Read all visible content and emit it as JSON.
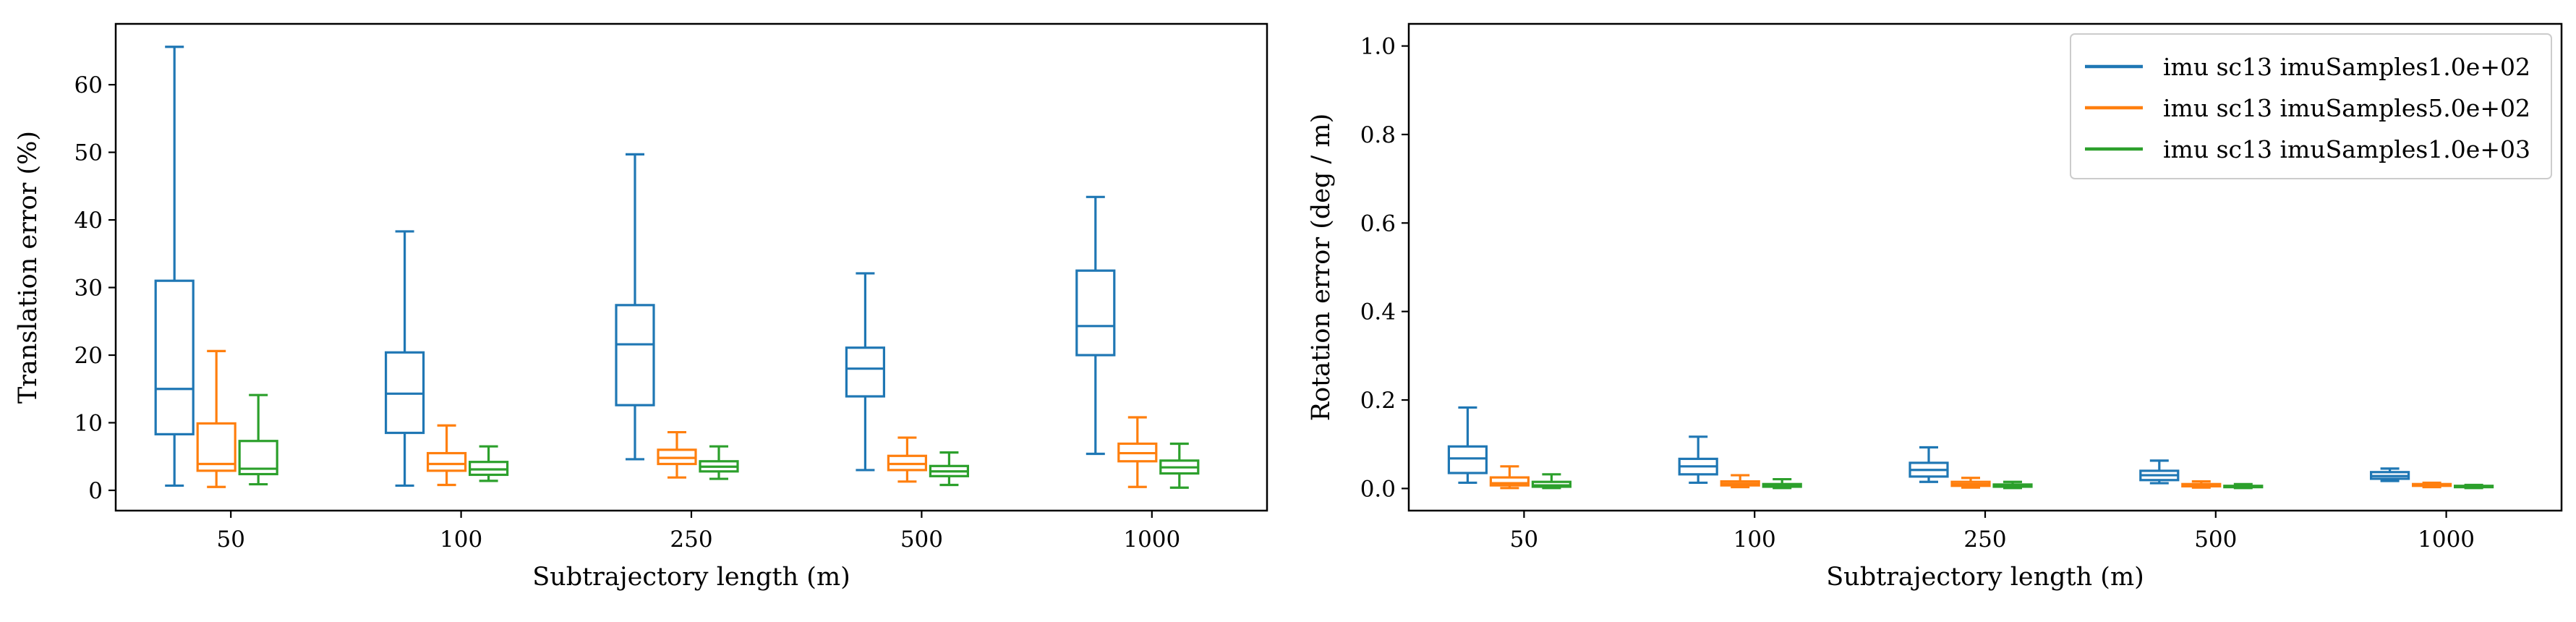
{
  "chart_data": [
    {
      "type": "box",
      "categories": [
        "50",
        "100",
        "250",
        "500",
        "1000"
      ],
      "xlabel": "Subtrajectory length (m)",
      "ylabel": "Translation error (%)",
      "ylim": [
        -3,
        69
      ],
      "yticks": [
        "0",
        "10",
        "20",
        "30",
        "40",
        "50",
        "60"
      ],
      "legend": false,
      "series": [
        {
          "name": "imu sc13 imuSamples1.0e+02",
          "color": "#1f77b4",
          "boxes": [
            {
              "whislo": 0.7,
              "q1": 8.3,
              "med": 15.0,
              "q3": 31.0,
              "whishi": 65.6
            },
            {
              "whislo": 0.7,
              "q1": 8.5,
              "med": 14.3,
              "q3": 20.4,
              "whishi": 38.3
            },
            {
              "whislo": 4.6,
              "q1": 12.6,
              "med": 21.6,
              "q3": 27.4,
              "whishi": 49.7
            },
            {
              "whislo": 3.0,
              "q1": 13.9,
              "med": 18.0,
              "q3": 21.1,
              "whishi": 32.1
            },
            {
              "whislo": 5.4,
              "q1": 20.0,
              "med": 24.3,
              "q3": 32.5,
              "whishi": 43.4
            }
          ]
        },
        {
          "name": "imu sc13 imuSamples5.0e+02",
          "color": "#ff7f0e",
          "boxes": [
            {
              "whislo": 0.5,
              "q1": 2.9,
              "med": 3.9,
              "q3": 9.9,
              "whishi": 20.6
            },
            {
              "whislo": 0.8,
              "q1": 2.9,
              "med": 3.9,
              "q3": 5.5,
              "whishi": 9.6
            },
            {
              "whislo": 1.9,
              "q1": 3.9,
              "med": 4.8,
              "q3": 6.0,
              "whishi": 8.6
            },
            {
              "whislo": 1.3,
              "q1": 3.0,
              "med": 3.9,
              "q3": 5.1,
              "whishi": 7.8
            },
            {
              "whislo": 0.5,
              "q1": 4.3,
              "med": 5.5,
              "q3": 6.9,
              "whishi": 10.8
            }
          ]
        },
        {
          "name": "imu sc13 imuSamples1.0e+03",
          "color": "#2ca02c",
          "boxes": [
            {
              "whislo": 0.9,
              "q1": 2.4,
              "med": 3.2,
              "q3": 7.3,
              "whishi": 14.1
            },
            {
              "whislo": 1.4,
              "q1": 2.3,
              "med": 3.1,
              "q3": 4.2,
              "whishi": 6.5
            },
            {
              "whislo": 1.7,
              "q1": 2.8,
              "med": 3.5,
              "q3": 4.3,
              "whishi": 6.5
            },
            {
              "whislo": 0.8,
              "q1": 2.1,
              "med": 2.8,
              "q3": 3.6,
              "whishi": 5.6
            },
            {
              "whislo": 0.4,
              "q1": 2.5,
              "med": 3.4,
              "q3": 4.4,
              "whishi": 6.9
            }
          ]
        }
      ]
    },
    {
      "type": "box",
      "categories": [
        "50",
        "100",
        "250",
        "500",
        "1000"
      ],
      "xlabel": "Subtrajectory length (m)",
      "ylabel": "Rotation error (deg / m)",
      "ylim": [
        -0.05,
        1.05
      ],
      "yticks": [
        "0.0",
        "0.2",
        "0.4",
        "0.6",
        "0.8",
        "1.0"
      ],
      "legend": true,
      "legend_loc": "upper right",
      "series": [
        {
          "name": "imu sc13 imuSamples1.0e+02",
          "color": "#1f77b4",
          "boxes": [
            {
              "whislo": 0.013,
              "q1": 0.035,
              "med": 0.068,
              "q3": 0.095,
              "whishi": 0.183
            },
            {
              "whislo": 0.013,
              "q1": 0.032,
              "med": 0.05,
              "q3": 0.067,
              "whishi": 0.117
            },
            {
              "whislo": 0.015,
              "q1": 0.027,
              "med": 0.042,
              "q3": 0.058,
              "whishi": 0.093
            },
            {
              "whislo": 0.012,
              "q1": 0.019,
              "med": 0.03,
              "q3": 0.04,
              "whishi": 0.063
            },
            {
              "whislo": 0.017,
              "q1": 0.022,
              "med": 0.028,
              "q3": 0.037,
              "whishi": 0.045
            }
          ]
        },
        {
          "name": "imu sc13 imuSamples5.0e+02",
          "color": "#ff7f0e",
          "boxes": [
            {
              "whislo": 0.001,
              "q1": 0.007,
              "med": 0.012,
              "q3": 0.025,
              "whishi": 0.05
            },
            {
              "whislo": 0.003,
              "q1": 0.007,
              "med": 0.011,
              "q3": 0.016,
              "whishi": 0.03
            },
            {
              "whislo": 0.002,
              "q1": 0.006,
              "med": 0.01,
              "q3": 0.015,
              "whishi": 0.024
            },
            {
              "whislo": 0.002,
              "q1": 0.005,
              "med": 0.007,
              "q3": 0.01,
              "whishi": 0.016
            },
            {
              "whislo": 0.003,
              "q1": 0.006,
              "med": 0.008,
              "q3": 0.01,
              "whishi": 0.013
            }
          ]
        },
        {
          "name": "imu sc13 imuSamples1.0e+03",
          "color": "#2ca02c",
          "boxes": [
            {
              "whislo": 0.001,
              "q1": 0.004,
              "med": 0.007,
              "q3": 0.015,
              "whishi": 0.032
            },
            {
              "whislo": 0.001,
              "q1": 0.004,
              "med": 0.006,
              "q3": 0.01,
              "whishi": 0.021
            },
            {
              "whislo": 0.001,
              "q1": 0.004,
              "med": 0.006,
              "q3": 0.009,
              "whishi": 0.015
            },
            {
              "whislo": 0.001,
              "q1": 0.003,
              "med": 0.005,
              "q3": 0.006,
              "whishi": 0.01
            },
            {
              "whislo": 0.001,
              "q1": 0.003,
              "med": 0.004,
              "q3": 0.006,
              "whishi": 0.008
            }
          ]
        }
      ]
    }
  ]
}
